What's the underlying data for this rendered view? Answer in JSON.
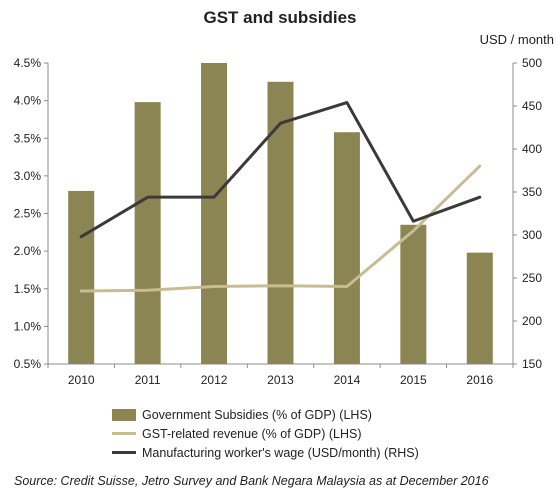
{
  "chart_data": {
    "type": "bar",
    "title": "GST and subsidies",
    "right_axis_unit": "USD / month",
    "categories": [
      "2010",
      "2011",
      "2012",
      "2013",
      "2014",
      "2015",
      "2016"
    ],
    "series": [
      {
        "name": "Government Subsidies (% of GDP) (LHS)",
        "type": "bar",
        "axis": "left",
        "color": "#8b8453",
        "values": [
          2.8,
          3.98,
          4.5,
          4.25,
          3.58,
          2.35,
          1.98
        ]
      },
      {
        "name": "GST-related revenue (% of GDP) (LHS)",
        "type": "line",
        "axis": "left",
        "color": "#c8bd92",
        "values": [
          1.47,
          1.48,
          1.53,
          1.54,
          1.53,
          2.27,
          3.13
        ]
      },
      {
        "name": "Manufacturing worker's wage (USD/month) (RHS)",
        "type": "line",
        "axis": "right",
        "color": "#3a3a3a",
        "values": [
          298,
          344,
          344,
          430,
          454,
          316,
          344
        ]
      }
    ],
    "y_left": {
      "ylim": [
        0.5,
        4.5
      ],
      "ticks": [
        "0.5%",
        "1.0%",
        "1.5%",
        "2.0%",
        "2.5%",
        "3.0%",
        "3.5%",
        "4.0%",
        "4.5%"
      ]
    },
    "y_right": {
      "ylim": [
        150,
        500
      ],
      "ticks": [
        "150",
        "200",
        "250",
        "300",
        "350",
        "400",
        "450",
        "500"
      ]
    },
    "grid": false,
    "legend_position": "bottom",
    "source": "Source: Credit Suisse, Jetro Survey and Bank Negara Malaysia as at December 2016"
  }
}
